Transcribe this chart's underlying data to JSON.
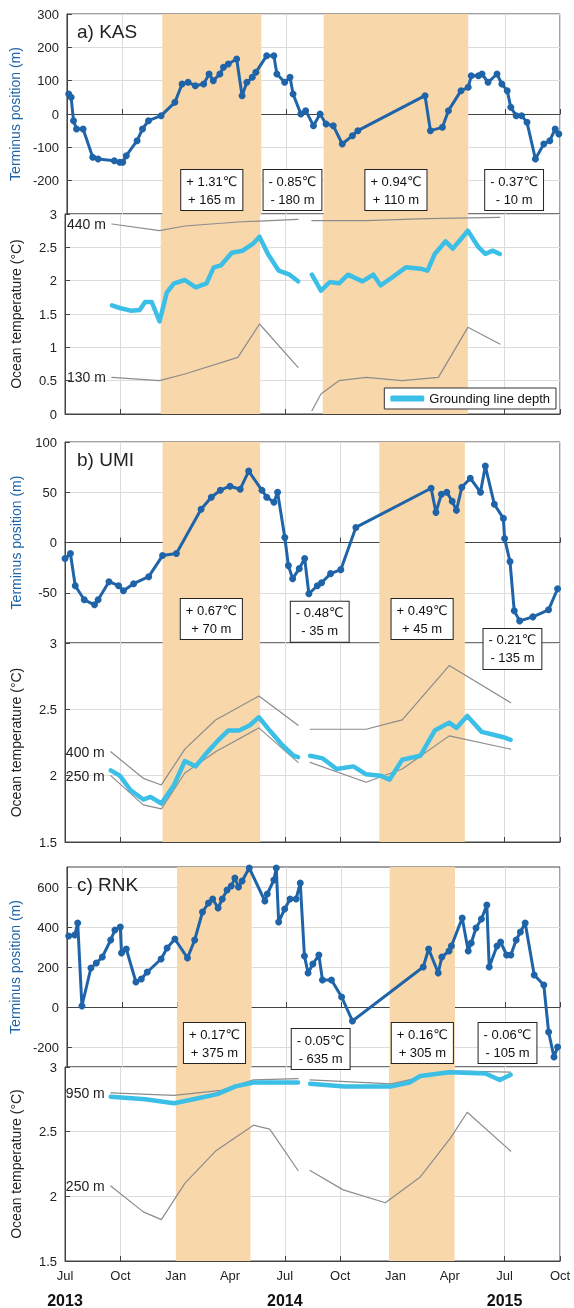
{
  "chart_data": [
    {
      "type": "line",
      "title": "a) KAS",
      "ylabel": "Terminus position (m)",
      "xlim": [
        "2013-07-01",
        "2015-10-01"
      ],
      "xticks": [
        {
          "value": "2013-07-01",
          "label": null
        },
        {
          "value": "2013-10-01",
          "label": null
        },
        {
          "value": "2014-01-01",
          "label": null
        },
        {
          "value": "2014-04-01",
          "label": null
        },
        {
          "value": "2014-07-01",
          "label": null
        },
        {
          "value": "2014-10-01",
          "label": null
        },
        {
          "value": "2015-01-01",
          "label": null
        },
        {
          "value": "2015-04-01",
          "label": null
        },
        {
          "value": "2015-07-01",
          "label": null
        },
        {
          "value": "2015-10-01",
          "label": null
        }
      ],
      "ylim": [
        -300,
        300
      ],
      "yticks": [
        -200,
        -100,
        0,
        100,
        200,
        300
      ],
      "grid": true,
      "tick_labels": "y",
      "marker": "circle",
      "series": [
        {
          "color": "#1f64a8",
          "x": [
            "2013-07-04",
            "2013-07-08",
            "2013-07-12",
            "2013-07-17",
            "2013-07-28",
            "2013-08-13",
            "2013-08-22",
            "2013-09-18",
            "2013-09-27",
            "2013-10-02",
            "2013-10-08",
            "2013-10-26",
            "2013-11-04",
            "2013-11-14",
            "2013-12-05",
            "2013-12-28",
            "2014-01-09",
            "2014-01-19",
            "2014-01-31",
            "2014-02-14",
            "2014-02-23",
            "2014-03-02",
            "2014-03-13",
            "2014-03-19",
            "2014-03-27",
            "2014-04-10",
            "2014-04-19",
            "2014-04-27",
            "2014-05-06",
            "2014-05-12",
            "2014-05-30",
            "2014-06-11",
            "2014-06-16",
            "2014-06-29",
            "2014-07-08",
            "2014-07-13",
            "2014-07-26",
            "2014-08-03",
            "2014-08-16",
            "2014-08-27",
            "2014-09-06",
            "2014-09-18",
            "2014-10-03",
            "2014-10-20",
            "2014-10-29",
            "2015-02-18",
            "2015-02-27",
            "2015-03-19",
            "2015-03-29",
            "2015-04-19",
            "2015-05-01",
            "2015-05-06",
            "2015-05-18",
            "2015-05-24",
            "2015-06-03",
            "2015-06-18",
            "2015-06-26",
            "2015-07-05",
            "2015-07-11",
            "2015-07-20",
            "2015-07-29",
            "2015-08-07",
            "2015-08-21",
            "2015-09-04",
            "2015-09-14",
            "2015-09-23",
            "2015-09-29"
          ],
          "values": [
            60,
            50,
            -20,
            -45,
            -45,
            -130,
            -135,
            -140,
            -145,
            -145,
            -125,
            -80,
            -45,
            -20,
            -5,
            35,
            90,
            95,
            85,
            90,
            120,
            100,
            120,
            140,
            150,
            165,
            55,
            95,
            110,
            125,
            175,
            175,
            120,
            95,
            110,
            60,
            0,
            10,
            -35,
            0,
            -30,
            -35,
            -90,
            -65,
            -50,
            55,
            -50,
            -40,
            10,
            70,
            80,
            115,
            115,
            120,
            95,
            120,
            90,
            70,
            20,
            -5,
            -5,
            -25,
            -135,
            -90,
            -80,
            -45,
            -60
          ]
        }
      ],
      "bands": [
        {
          "axis": "x",
          "from": "2013-12-07",
          "to": "2014-05-21",
          "color": "#f8d7ab"
        },
        {
          "axis": "x",
          "from": "2014-09-02",
          "to": "2015-05-01",
          "color": "#f8d7ab"
        }
      ],
      "annotations": [
        "+ 1.31℃\n+ 165 m",
        "- 0.85℃\n- 180 m",
        "+ 0.94℃\n+ 110 m",
        "- 0.37℃\n- 10 m"
      ]
    },
    {
      "type": "line",
      "ylabel": "Ocean temperature (°C)",
      "xlim": [
        "2013-07-01",
        "2015-10-01"
      ],
      "xticks": [
        {
          "value": "2013-07-01",
          "label": null
        },
        {
          "value": "2013-10-01",
          "label": null
        },
        {
          "value": "2014-01-01",
          "label": null
        },
        {
          "value": "2014-04-01",
          "label": null
        },
        {
          "value": "2014-07-01",
          "label": null
        },
        {
          "value": "2014-10-01",
          "label": null
        },
        {
          "value": "2015-01-01",
          "label": null
        },
        {
          "value": "2015-04-01",
          "label": null
        },
        {
          "value": "2015-07-01",
          "label": null
        },
        {
          "value": "2015-10-01",
          "label": null
        }
      ],
      "ylim": [
        0,
        3
      ],
      "yticks": [
        0,
        0.5,
        1,
        1.5,
        2,
        2.5,
        3
      ],
      "grid": true,
      "tick_labels": "y",
      "marker": "none",
      "legend": "bottom right",
      "series": [
        {
          "name": "Grounding line depth",
          "color": "#3bbfe6",
          "x": [
            "2013-09-17",
            "2013-09-30",
            "2013-10-18",
            "2013-11-02",
            "2013-11-11",
            "2013-11-22",
            "2013-12-05",
            "2013-12-17",
            "2013-12-29",
            "2014-01-16",
            "2014-02-03",
            "2014-02-21",
            "2014-03-05",
            "2014-03-17",
            "2014-04-04",
            "2014-04-22",
            "2014-05-10",
            "2014-05-20",
            "2014-06-03",
            "2014-06-21",
            "2014-07-09",
            "2014-07-23",
            "2014-07-30",
            "2014-08-15",
            "2014-08-30",
            "2014-09-14",
            "2014-09-29",
            "2014-10-14",
            "2014-11-07",
            "2014-11-25",
            "2014-12-07",
            "2014-12-25",
            "2015-01-18",
            "2015-02-11",
            "2015-02-23",
            "2015-03-07",
            "2015-03-25",
            "2015-04-06",
            "2015-04-21",
            "2015-05-01",
            "2015-05-18",
            "2015-05-30",
            "2015-06-11",
            "2015-06-23"
          ],
          "values": [
            1.63,
            1.59,
            1.55,
            1.56,
            1.68,
            1.68,
            1.39,
            1.82,
            1.96,
            2.01,
            1.9,
            1.96,
            2.2,
            2.23,
            2.42,
            2.45,
            2.56,
            2.66,
            2.4,
            2.15,
            2.09,
            1.99,
            null,
            2.09,
            1.85,
            1.98,
            1.96,
            2.09,
            1.99,
            2.09,
            1.93,
            2.04,
            2.2,
            2.18,
            2.15,
            2.4,
            2.59,
            2.48,
            2.64,
            2.75,
            2.51,
            2.4,
            2.45,
            2.4
          ]
        },
        {
          "color": "#8c8c8c",
          "x": [
            "2013-09-17",
            "2013-12-05",
            "2014-01-16",
            "2014-04-14",
            "2014-07-23",
            "2014-07-30",
            "2014-08-15",
            "2014-11-13",
            "2015-02-21",
            "2015-06-23"
          ],
          "values": [
            2.85,
            2.75,
            2.82,
            2.88,
            2.92,
            null,
            2.9,
            2.9,
            2.93,
            2.95
          ]
        },
        {
          "color": "#8c8c8c",
          "x": [
            "2013-09-17",
            "2013-12-05",
            "2014-01-16",
            "2014-04-14",
            "2014-05-20",
            "2014-07-23",
            "2014-07-30",
            "2014-08-15",
            "2014-08-30",
            "2014-09-29",
            "2014-11-13",
            "2015-01-12",
            "2015-03-13",
            "2015-05-01",
            "2015-06-23"
          ],
          "values": [
            0.55,
            0.5,
            0.6,
            0.85,
            1.35,
            0.7,
            null,
            0.05,
            0.3,
            0.5,
            0.55,
            0.5,
            0.55,
            1.3,
            1.05
          ]
        }
      ],
      "bands": [
        {
          "axis": "x",
          "from": "2013-12-07",
          "to": "2014-05-21",
          "color": "#f8d7ab"
        },
        {
          "axis": "x",
          "from": "2014-09-02",
          "to": "2015-05-01",
          "color": "#f8d7ab"
        }
      ],
      "annotations": [
        "440 m",
        "130 m"
      ]
    },
    {
      "type": "line",
      "title": "b) UMI",
      "ylabel": "Terminus position (m)",
      "xlim": [
        "2013-07-01",
        "2015-10-01"
      ],
      "xticks": [
        {
          "value": "2013-07-01",
          "label": null
        },
        {
          "value": "2013-10-01",
          "label": null
        },
        {
          "value": "2014-01-01",
          "label": null
        },
        {
          "value": "2014-04-01",
          "label": null
        },
        {
          "value": "2014-07-01",
          "label": null
        },
        {
          "value": "2014-10-01",
          "label": null
        },
        {
          "value": "2015-01-01",
          "label": null
        },
        {
          "value": "2015-04-01",
          "label": null
        },
        {
          "value": "2015-07-01",
          "label": null
        },
        {
          "value": "2015-10-01",
          "label": null
        }
      ],
      "ylim": [
        -100,
        100
      ],
      "yticks": [
        -50,
        0,
        50,
        100
      ],
      "grid": true,
      "tick_labels": "y",
      "marker": "circle",
      "series": [
        {
          "color": "#1f64a8",
          "x": [
            "2013-07-01",
            "2013-07-10",
            "2013-07-18",
            "2013-08-02",
            "2013-08-19",
            "2013-08-25",
            "2013-09-12",
            "2013-09-28",
            "2013-10-06",
            "2013-10-23",
            "2013-11-17",
            "2013-12-10",
            "2014-01-02",
            "2014-02-12",
            "2014-03-01",
            "2014-03-16",
            "2014-04-01",
            "2014-04-18",
            "2014-05-02",
            "2014-05-24",
            "2014-06-01",
            "2014-06-13",
            "2014-06-19",
            "2014-07-01",
            "2014-07-07",
            "2014-07-14",
            "2014-07-25",
            "2014-08-03",
            "2014-08-10",
            "2014-08-24",
            "2014-08-31",
            "2014-09-15",
            "2014-10-02",
            "2014-10-27",
            "2015-03-01",
            "2015-03-09",
            "2015-03-18",
            "2015-03-27",
            "2015-04-05",
            "2015-04-12",
            "2015-04-21",
            "2015-05-05",
            "2015-05-22",
            "2015-05-30",
            "2015-06-14",
            "2015-06-29",
            "2015-07-01",
            "2015-07-10",
            "2015-07-17",
            "2015-07-26",
            "2015-08-17",
            "2015-09-12",
            "2015-09-27"
          ],
          "values": [
            -16,
            -11,
            -43,
            -57,
            -62,
            -57,
            -39,
            -43,
            -48,
            -41,
            -34,
            -13,
            -11,
            33,
            45,
            52,
            56,
            53,
            71,
            52,
            45,
            40,
            50,
            5,
            -23,
            -36,
            -26,
            -16,
            -51,
            -43,
            -40,
            -31,
            -27,
            15,
            54,
            30,
            48,
            50,
            41,
            32,
            55,
            64,
            50,
            76,
            38,
            24,
            4,
            -19,
            -68,
            -78,
            -74,
            -67,
            -46
          ]
        }
      ],
      "bands": [
        {
          "axis": "x",
          "from": "2013-12-10",
          "to": "2014-05-21",
          "color": "#f8d7ab"
        },
        {
          "axis": "x",
          "from": "2014-12-05",
          "to": "2015-04-26",
          "color": "#f8d7ab"
        }
      ],
      "annotations": [
        "+ 0.67℃\n+ 70 m",
        "- 0.48℃\n- 35 m",
        "+ 0.49℃\n+ 45 m",
        "- 0.21℃\n- 135 m"
      ]
    },
    {
      "type": "line",
      "ylabel": "Ocean temperature (°C)",
      "xlim": [
        "2013-07-01",
        "2015-10-01"
      ],
      "xticks": [
        {
          "value": "2013-07-01",
          "label": null
        },
        {
          "value": "2013-10-01",
          "label": null
        },
        {
          "value": "2014-01-01",
          "label": null
        },
        {
          "value": "2014-04-01",
          "label": null
        },
        {
          "value": "2014-07-01",
          "label": null
        },
        {
          "value": "2014-10-01",
          "label": null
        },
        {
          "value": "2015-01-01",
          "label": null
        },
        {
          "value": "2015-04-01",
          "label": null
        },
        {
          "value": "2015-07-01",
          "label": null
        },
        {
          "value": "2015-10-01",
          "label": null
        }
      ],
      "ylim": [
        1.5,
        3
      ],
      "yticks": [
        1.5,
        2,
        2.5,
        3
      ],
      "grid": true,
      "tick_labels": "y",
      "marker": "none",
      "series": [
        {
          "color": "#3bbfe6",
          "x": [
            "2013-09-15",
            "2013-09-30",
            "2013-10-18",
            "2013-11-08",
            "2013-11-20",
            "2013-12-08",
            "2013-12-29",
            "2014-01-16",
            "2014-02-03",
            "2014-02-21",
            "2014-03-11",
            "2014-03-29",
            "2014-04-16",
            "2014-05-04",
            "2014-05-19",
            "2014-06-06",
            "2014-06-25",
            "2014-07-16",
            "2014-07-23",
            "2014-07-30",
            "2014-08-12",
            "2014-09-02",
            "2014-09-25",
            "2014-10-23",
            "2014-11-13",
            "2014-12-07",
            "2014-12-22",
            "2015-01-12",
            "2015-02-11",
            "2015-03-07",
            "2015-03-31",
            "2015-04-12",
            "2015-04-30",
            "2015-05-24",
            "2015-06-11",
            "2015-06-29",
            "2015-07-11"
          ],
          "values": [
            2.04,
            2.0,
            1.89,
            1.82,
            1.84,
            1.79,
            1.93,
            2.11,
            2.07,
            2.17,
            2.26,
            2.34,
            2.34,
            2.38,
            2.44,
            2.34,
            2.24,
            2.15,
            2.14,
            null,
            2.15,
            2.13,
            2.05,
            2.07,
            2.01,
            2.0,
            1.97,
            2.12,
            2.15,
            2.34,
            2.4,
            2.36,
            2.45,
            2.33,
            2.31,
            2.29,
            2.27
          ]
        },
        {
          "color": "#8c8c8c",
          "x": [
            "2013-09-15",
            "2013-11-08",
            "2013-12-08",
            "2014-01-16",
            "2014-03-08",
            "2014-05-19",
            "2014-07-23",
            "2014-07-30",
            "2014-08-12",
            "2014-11-13",
            "2015-01-12",
            "2015-03-31",
            "2015-07-11"
          ],
          "values": [
            2.18,
            1.98,
            1.93,
            2.2,
            2.42,
            2.6,
            2.38,
            null,
            2.35,
            2.35,
            2.42,
            2.83,
            2.55
          ]
        },
        {
          "color": "#8c8c8c",
          "x": [
            "2013-09-15",
            "2013-11-08",
            "2013-12-08",
            "2014-01-16",
            "2014-03-08",
            "2014-05-19",
            "2014-07-23",
            "2014-07-30",
            "2014-08-12",
            "2014-11-13",
            "2015-01-12",
            "2015-03-31",
            "2015-07-11"
          ],
          "values": [
            2.0,
            1.78,
            1.75,
            2.02,
            2.18,
            2.36,
            2.1,
            null,
            2.1,
            1.95,
            2.05,
            2.3,
            2.2
          ]
        }
      ],
      "bands": [
        {
          "axis": "x",
          "from": "2013-12-10",
          "to": "2014-05-21",
          "color": "#f8d7ab"
        },
        {
          "axis": "x",
          "from": "2014-12-05",
          "to": "2015-04-26",
          "color": "#f8d7ab"
        }
      ],
      "annotations": [
        "400 m",
        "250 m"
      ]
    },
    {
      "type": "line",
      "title": "c) RNK",
      "ylabel": "Terminus position (m)",
      "xlim": [
        "2013-07-01",
        "2015-10-01"
      ],
      "xticks": [
        {
          "value": "2013-07-01",
          "label": null
        },
        {
          "value": "2013-10-01",
          "label": null
        },
        {
          "value": "2014-01-01",
          "label": null
        },
        {
          "value": "2014-04-01",
          "label": null
        },
        {
          "value": "2014-07-01",
          "label": null
        },
        {
          "value": "2014-10-01",
          "label": null
        },
        {
          "value": "2015-01-01",
          "label": null
        },
        {
          "value": "2015-04-01",
          "label": null
        },
        {
          "value": "2015-07-01",
          "label": null
        },
        {
          "value": "2015-10-01",
          "label": null
        }
      ],
      "ylim": [
        -300,
        700
      ],
      "yticks": [
        -200,
        0,
        200,
        400,
        600
      ],
      "grid": true,
      "tick_labels": "y",
      "marker": "circle",
      "series": [
        {
          "color": "#1f64a8",
          "x": [
            "2013-07-04",
            "2013-07-14",
            "2013-07-19",
            "2013-07-26",
            "2013-08-10",
            "2013-08-19",
            "2013-08-29",
            "2013-09-12",
            "2013-09-19",
            "2013-09-28",
            "2013-09-30",
            "2013-10-08",
            "2013-10-24",
            "2013-11-02",
            "2013-11-12",
            "2013-12-05",
            "2013-12-15",
            "2013-12-28",
            "2014-01-18",
            "2014-01-30",
            "2014-02-12",
            "2014-02-22",
            "2014-03-01",
            "2014-03-10",
            "2014-03-17",
            "2014-03-25",
            "2014-04-01",
            "2014-04-07",
            "2014-04-13",
            "2014-04-19",
            "2014-05-01",
            "2014-05-27",
            "2014-05-31",
            "2014-06-11",
            "2014-06-15",
            "2014-06-19",
            "2014-06-29",
            "2014-07-08",
            "2014-07-18",
            "2014-07-25",
            "2014-08-01",
            "2014-08-07",
            "2014-08-15",
            "2014-08-25",
            "2014-08-31",
            "2014-09-15",
            "2014-10-02",
            "2014-10-20",
            "2015-02-15",
            "2015-02-24",
            "2015-03-12",
            "2015-03-18",
            "2015-03-30",
            "2015-04-03",
            "2015-04-21",
            "2015-05-01",
            "2015-05-06",
            "2015-05-14",
            "2015-05-23",
            "2015-06-01",
            "2015-06-05",
            "2015-06-18",
            "2015-06-24",
            "2015-07-04",
            "2015-07-11",
            "2015-07-20",
            "2015-07-27",
            "2015-08-04",
            "2015-08-19",
            "2015-09-04",
            "2015-09-12",
            "2015-09-21",
            "2015-09-27"
          ],
          "values": [
            355,
            360,
            420,
            5,
            195,
            220,
            250,
            335,
            385,
            400,
            270,
            290,
            125,
            140,
            175,
            240,
            295,
            340,
            245,
            335,
            475,
            520,
            540,
            495,
            540,
            585,
            605,
            645,
            600,
            630,
            695,
            530,
            565,
            635,
            695,
            425,
            490,
            540,
            540,
            620,
            255,
            170,
            215,
            260,
            135,
            135,
            50,
            -70,
            200,
            290,
            170,
            250,
            280,
            305,
            445,
            280,
            320,
            395,
            440,
            510,
            200,
            305,
            325,
            260,
            260,
            335,
            375,
            420,
            160,
            110,
            -125,
            -250,
            -200
          ]
        }
      ],
      "bands": [
        {
          "axis": "x",
          "from": "2014-01-01",
          "to": "2014-05-05",
          "color": "#f8d7ab"
        },
        {
          "axis": "x",
          "from": "2014-12-21",
          "to": "2015-04-09",
          "color": "#f8d7ab"
        }
      ],
      "annotations": [
        "+ 0.17℃\n+ 375 m",
        "- 0.05℃\n- 635 m",
        "+ 0.16℃\n+ 305 m",
        "- 0.06℃\n- 105 m"
      ]
    },
    {
      "type": "line",
      "ylabel": "Ocean temperature (°C)",
      "xlim": [
        "2013-07-01",
        "2015-10-01"
      ],
      "xticks": [
        {
          "value": "2013-07-01",
          "label": "Jul\n2013"
        },
        {
          "value": "2013-10-01",
          "label": "Oct"
        },
        {
          "value": "2014-01-01",
          "label": "Jan"
        },
        {
          "value": "2014-04-01",
          "label": "Apr"
        },
        {
          "value": "2014-07-01",
          "label": "Jul\n2014"
        },
        {
          "value": "2014-10-01",
          "label": "Oct"
        },
        {
          "value": "2015-01-01",
          "label": "Jan"
        },
        {
          "value": "2015-04-01",
          "label": "Apr"
        },
        {
          "value": "2015-07-01",
          "label": "Jul\n2015"
        },
        {
          "value": "2015-10-01",
          "label": "Oct"
        }
      ],
      "ylim": [
        1.5,
        3
      ],
      "yticks": [
        1.5,
        2,
        2.5,
        3
      ],
      "grid": true,
      "marker": "none",
      "series": [
        {
          "color": "#3bbfe6",
          "x": [
            "2013-09-15",
            "2013-11-11",
            "2013-12-29",
            "2014-02-09",
            "2014-03-11",
            "2014-04-10",
            "2014-05-10",
            "2014-07-23",
            "2014-07-30",
            "2014-08-12",
            "2014-10-08",
            "2014-12-25",
            "2015-01-24",
            "2015-02-11",
            "2015-03-31",
            "2015-05-30",
            "2015-06-23",
            "2015-07-11"
          ],
          "values": [
            2.77,
            2.75,
            2.72,
            2.76,
            2.79,
            2.85,
            2.88,
            2.88,
            null,
            2.87,
            2.85,
            2.85,
            2.88,
            2.93,
            2.96,
            2.95,
            2.9,
            2.94
          ]
        },
        {
          "color": "#8c8c8c",
          "x": [
            "2013-09-15",
            "2013-12-29",
            "2014-03-17",
            "2014-05-10",
            "2014-07-23",
            "2014-07-30",
            "2014-08-12",
            "2014-12-25",
            "2015-03-31",
            "2015-07-11"
          ],
          "values": [
            2.8,
            2.78,
            2.82,
            2.9,
            2.91,
            null,
            2.9,
            2.87,
            2.97,
            2.96
          ]
        },
        {
          "color": "#8c8c8c",
          "x": [
            "2013-09-15",
            "2013-11-08",
            "2013-12-08",
            "2014-01-16",
            "2014-03-08",
            "2014-05-10",
            "2014-06-06",
            "2014-07-23",
            "2014-07-30",
            "2014-08-12",
            "2014-10-06",
            "2014-12-15",
            "2015-02-11",
            "2015-04-02",
            "2015-04-30",
            "2015-07-11"
          ],
          "values": [
            2.08,
            1.88,
            1.82,
            2.1,
            2.35,
            2.55,
            2.52,
            2.2,
            null,
            2.2,
            2.05,
            1.95,
            2.15,
            2.45,
            2.65,
            2.35
          ]
        }
      ],
      "bands": [
        {
          "axis": "x",
          "from": "2014-01-01",
          "to": "2014-05-05",
          "color": "#f8d7ab"
        },
        {
          "axis": "x",
          "from": "2014-12-21",
          "to": "2015-04-09",
          "color": "#f8d7ab"
        }
      ],
      "annotations": [
        "950 m",
        "250 m"
      ]
    }
  ]
}
